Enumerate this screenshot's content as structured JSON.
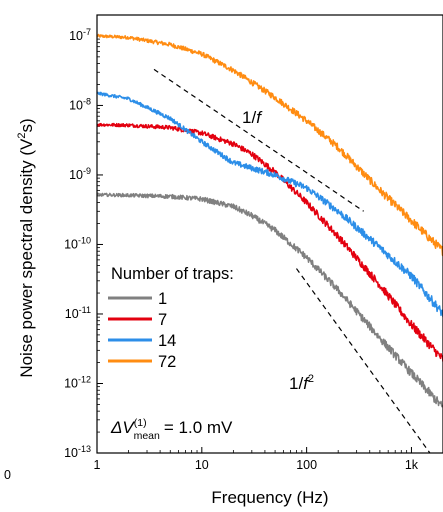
{
  "chart_data": {
    "type": "line",
    "xlabel": "Frequency (Hz)",
    "ylabel_prefix": "Noise power spectral density (V",
    "ylabel_sup": "2",
    "ylabel_suffix": "s)",
    "xscale": "log",
    "yscale": "log",
    "xlim": [
      1,
      2000
    ],
    "ylim": [
      1e-13,
      2e-07
    ],
    "x_ticks": [
      {
        "value": 1,
        "label": "1"
      },
      {
        "value": 10,
        "label": "10"
      },
      {
        "value": 100,
        "label": "100"
      },
      {
        "value": 1000,
        "label": "1k"
      }
    ],
    "y_ticks": [
      {
        "value": 1e-07,
        "base": "10",
        "exp": "-7"
      },
      {
        "value": 1e-08,
        "base": "10",
        "exp": "-8"
      },
      {
        "value": 1e-09,
        "base": "10",
        "exp": "-9"
      },
      {
        "value": 1e-10,
        "base": "10",
        "exp": "-10"
      },
      {
        "value": 1e-11,
        "base": "10",
        "exp": "-11"
      },
      {
        "value": 1e-12,
        "base": "10",
        "exp": "-12"
      },
      {
        "value": 1e-13,
        "base": "10",
        "exp": "-13"
      }
    ],
    "stray_tick_label": "0",
    "legend": {
      "title": "Number of traps:",
      "position": "lower-left"
    },
    "series": [
      {
        "name": "1",
        "color": "#808080",
        "points": [
          [
            1,
            5.2e-10
          ],
          [
            2,
            5.1e-10
          ],
          [
            5,
            4.9e-10
          ],
          [
            10,
            4.5e-10
          ],
          [
            20,
            3.5e-10
          ],
          [
            30,
            2.6e-10
          ],
          [
            50,
            1.6e-10
          ],
          [
            100,
            6.5e-11
          ],
          [
            200,
            2.2e-11
          ],
          [
            500,
            4.5e-12
          ],
          [
            1000,
            1.4e-12
          ],
          [
            2000,
            4.5e-13
          ]
        ]
      },
      {
        "name": "7",
        "color": "#e3000f",
        "points": [
          [
            1,
            5.3e-09
          ],
          [
            2,
            5.2e-09
          ],
          [
            5,
            4.8e-09
          ],
          [
            10,
            4e-09
          ],
          [
            20,
            2.8e-09
          ],
          [
            30,
            2e-09
          ],
          [
            50,
            1.1e-09
          ],
          [
            100,
            4e-10
          ],
          [
            200,
            1.3e-10
          ],
          [
            500,
            2.6e-11
          ],
          [
            1000,
            7e-12
          ],
          [
            2000,
            2.2e-12
          ]
        ]
      },
      {
        "name": "14",
        "color": "#2c8ee8",
        "points": [
          [
            1,
            1.5e-08
          ],
          [
            2,
            1.25e-08
          ],
          [
            5,
            6.5e-09
          ],
          [
            10,
            3e-09
          ],
          [
            20,
            1.5e-09
          ],
          [
            50,
            1e-09
          ],
          [
            100,
            6.5e-10
          ],
          [
            200,
            3e-10
          ],
          [
            500,
            9e-11
          ],
          [
            1000,
            3.5e-11
          ],
          [
            2000,
            1e-11
          ]
        ]
      },
      {
        "name": "72",
        "color": "#ff8c12",
        "points": [
          [
            1,
            1e-07
          ],
          [
            2,
            9.5e-08
          ],
          [
            5,
            7.5e-08
          ],
          [
            10,
            5.5e-08
          ],
          [
            20,
            3.2e-08
          ],
          [
            50,
            1.3e-08
          ],
          [
            100,
            6e-09
          ],
          [
            200,
            2.5e-09
          ],
          [
            500,
            6e-10
          ],
          [
            1000,
            2.2e-10
          ],
          [
            2000,
            8e-11
          ]
        ]
      }
    ],
    "guide_lines": [
      {
        "label_base": "1/",
        "label_var": "f",
        "label_exp": "",
        "points": [
          [
            3.5,
            3.3e-08
          ],
          [
            350,
            3e-10
          ]
        ]
      },
      {
        "label_base": "1/",
        "label_var": "f",
        "label_exp": "2",
        "points": [
          [
            80,
            4.5e-11
          ],
          [
            1500,
            1e-13
          ]
        ]
      }
    ],
    "annotation": {
      "prefix": "ΔV",
      "sup": "(1)",
      "sub": "mean",
      "suffix": "= 1.0 mV"
    }
  }
}
